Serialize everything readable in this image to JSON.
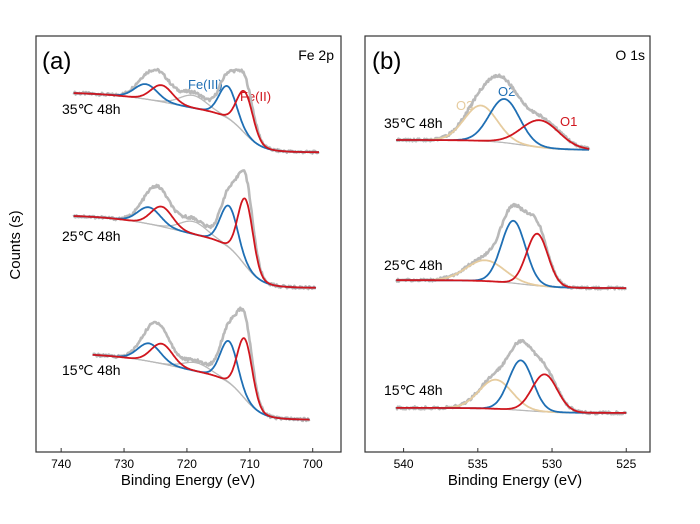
{
  "y_axis_label": "Counts (s)",
  "colors": {
    "blue": "#1f6fb4",
    "red": "#d0161e",
    "gray": "#b9b9b9",
    "tan": "#e6cc9f",
    "frame": "#333333"
  },
  "chart_data": [
    {
      "type": "line",
      "panel": "(a)",
      "title": "Fe 2p",
      "xlabel": "Binding Energy (eV)",
      "ylabel": "Counts (s)",
      "xlim": [
        744,
        695.5
      ],
      "ylim": [
        0,
        100
      ],
      "xticks": [
        740,
        730,
        720,
        710,
        700
      ],
      "peak_labels": [
        {
          "text": "Fe(III)",
          "color": "blue"
        },
        {
          "text": "Fe(II)",
          "color": "red"
        }
      ],
      "envelope_scale": 1.25,
      "spectra": [
        {
          "label": "35℃ 48h",
          "x_range": [
            738,
            699
          ],
          "bg_high": 86.5,
          "bg_low": 72,
          "bg_steps": [
            {
              "center": 711,
              "width": 1.5,
              "weight": 0.6
            },
            {
              "center": 722,
              "width": 5,
              "weight": 0.4
            }
          ],
          "peaks": [
            {
              "name": "Fe(III) 2p3/2",
              "center": 713.5,
              "height": 7.7,
              "fwhm": 3.2,
              "color": "blue"
            },
            {
              "name": "Fe(III) 2p1/2",
              "center": 726.5,
              "height": 3.6,
              "fwhm": 4.2,
              "color": "blue"
            },
            {
              "name": "Fe(II) 2p3/2",
              "center": 710.8,
              "height": 10,
              "fwhm": 3.0,
              "color": "red"
            },
            {
              "name": "Fe(II) 2p1/2",
              "center": 724,
              "height": 4,
              "fwhm": 4.0,
              "color": "red"
            },
            {
              "name": "satellite",
              "center": 719,
              "height": 3,
              "fwhm": 5,
              "color": "gray"
            }
          ]
        },
        {
          "label": "25℃ 48h",
          "x_range": [
            738,
            699.5
          ],
          "bg_high": 57,
          "bg_low": 39.4,
          "bg_steps": [
            {
              "center": 711,
              "width": 1.5,
              "weight": 0.6
            },
            {
              "center": 722,
              "width": 5,
              "weight": 0.4
            }
          ],
          "peaks": [
            {
              "name": "Fe(III) 2p3/2",
              "center": 713.3,
              "height": 10,
              "fwhm": 3.2,
              "color": "blue"
            },
            {
              "name": "Fe(III) 2p1/2",
              "center": 726,
              "height": 4,
              "fwhm": 4.2,
              "color": "blue"
            },
            {
              "name": "Fe(II) 2p3/2",
              "center": 710.7,
              "height": 16,
              "fwhm": 2.8,
              "color": "red"
            },
            {
              "name": "Fe(II) 2p1/2",
              "center": 724,
              "height": 4.8,
              "fwhm": 4.0,
              "color": "red"
            },
            {
              "name": "satellite",
              "center": 719,
              "height": 3,
              "fwhm": 5,
              "color": "gray"
            }
          ]
        },
        {
          "label": "15℃ 48h",
          "x_range": [
            735,
            700.5
          ],
          "bg_high": 23.8,
          "bg_low": 7.7,
          "bg_steps": [
            {
              "center": 711,
              "width": 1.5,
              "weight": 0.6
            },
            {
              "center": 722,
              "width": 5,
              "weight": 0.4
            }
          ],
          "peaks": [
            {
              "name": "Fe(III) 2p3/2",
              "center": 713.3,
              "height": 10,
              "fwhm": 3.2,
              "color": "blue"
            },
            {
              "name": "Fe(III) 2p1/2",
              "center": 726,
              "height": 4.3,
              "fwhm": 4.2,
              "color": "blue"
            },
            {
              "name": "Fe(II) 2p3/2",
              "center": 710.8,
              "height": 14.4,
              "fwhm": 2.8,
              "color": "red"
            },
            {
              "name": "Fe(II) 2p1/2",
              "center": 724,
              "height": 4.8,
              "fwhm": 4.0,
              "color": "red"
            },
            {
              "name": "satellite",
              "center": 718.5,
              "height": 2,
              "fwhm": 5,
              "color": "gray"
            }
          ]
        }
      ]
    },
    {
      "type": "line",
      "panel": "(b)",
      "title": "O 1s",
      "xlabel": "Binding Energy (eV)",
      "ylabel": "Counts (s)",
      "xlim": [
        542.6,
        523.4
      ],
      "ylim": [
        0,
        100
      ],
      "xticks": [
        540,
        535,
        530,
        525
      ],
      "peak_labels": [
        {
          "text": "O3",
          "color": "tan"
        },
        {
          "text": "O2",
          "color": "blue"
        },
        {
          "text": "O1",
          "color": "red"
        }
      ],
      "envelope_scale": 1.06,
      "spectra": [
        {
          "label": "35℃ 48h",
          "x_range": [
            540.5,
            527.5
          ],
          "bg_high": 75,
          "bg_low": 72.6,
          "bg_steps": [
            {
              "center": 532,
              "width": 1.2,
              "weight": 1
            }
          ],
          "peaks": [
            {
              "name": "O3",
              "center": 534.8,
              "height": 8.5,
              "fwhm": 2.6,
              "color": "tan"
            },
            {
              "name": "O2",
              "center": 533.2,
              "height": 10.5,
              "fwhm": 2.4,
              "color": "blue"
            },
            {
              "name": "O1",
              "center": 530.8,
              "height": 6.5,
              "fwhm": 3.0,
              "color": "red"
            }
          ]
        },
        {
          "label": "25℃ 48h",
          "x_range": [
            540.5,
            525
          ],
          "bg_high": 41.3,
          "bg_low": 39.4,
          "bg_steps": [
            {
              "center": 532,
              "width": 1.2,
              "weight": 1
            }
          ],
          "peaks": [
            {
              "name": "O3",
              "center": 534.5,
              "height": 5,
              "fwhm": 3.0,
              "color": "tan"
            },
            {
              "name": "O2",
              "center": 532.6,
              "height": 15,
              "fwhm": 1.9,
              "color": "blue"
            },
            {
              "name": "O1",
              "center": 531.0,
              "height": 12.5,
              "fwhm": 1.7,
              "color": "red"
            }
          ]
        },
        {
          "label": "15℃ 48h",
          "x_range": [
            540.5,
            525
          ],
          "bg_high": 10.6,
          "bg_low": 9.4,
          "bg_steps": [
            {
              "center": 532,
              "width": 1.2,
              "weight": 1
            }
          ],
          "peaks": [
            {
              "name": "O3",
              "center": 533.8,
              "height": 7,
              "fwhm": 2.6,
              "color": "tan"
            },
            {
              "name": "O2",
              "center": 532.1,
              "height": 12,
              "fwhm": 1.9,
              "color": "blue"
            },
            {
              "name": "O1",
              "center": 530.5,
              "height": 9,
              "fwhm": 2.0,
              "color": "red"
            }
          ]
        }
      ]
    }
  ]
}
